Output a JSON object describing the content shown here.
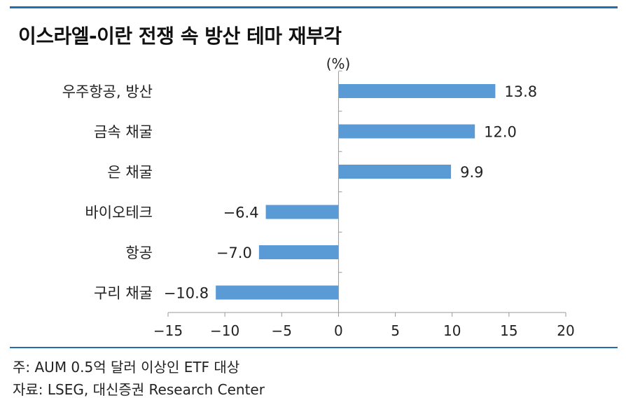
{
  "title": "이스라엘-이란 전쟁 속 방산 테마 재부각",
  "notes": {
    "note": "주: AUM 0.5억 달러 이상인 ETF 대상",
    "source": "자료: LSEG, 대신증권 Research Center"
  },
  "colors": {
    "bar": "#5b9bd5",
    "rule": "#1f6fb2",
    "axis": "#999999"
  },
  "chart_data": {
    "type": "bar",
    "orientation": "horizontal",
    "unit_label": "(%)",
    "categories": [
      "우주항공, 방산",
      "금속 채굴",
      "은 채굴",
      "바이오테크",
      "항공",
      "구리 채굴"
    ],
    "values": [
      13.8,
      12.0,
      9.9,
      -6.4,
      -7.0,
      -10.8
    ],
    "value_labels": [
      "13.8",
      "12.0",
      "9.9",
      "−6.4",
      "−7.0",
      "−10.8"
    ],
    "xlim": [
      -15,
      20
    ],
    "xticks": [
      -15,
      -10,
      -5,
      0,
      5,
      10,
      15,
      20
    ],
    "xtick_labels": [
      "−15",
      "−10",
      "−5",
      "0",
      "5",
      "10",
      "15",
      "20"
    ],
    "grid": false,
    "legend": "none"
  }
}
